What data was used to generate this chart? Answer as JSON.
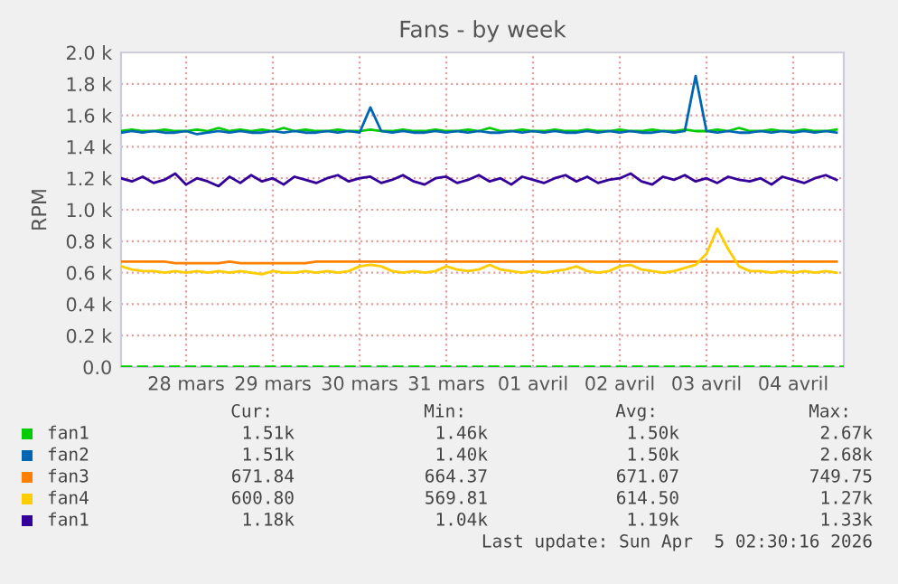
{
  "chart_data": {
    "type": "line",
    "title": "Fans - by week",
    "ylabel": "RPM",
    "x": [
      "2026-03-27T18:00",
      "2026-03-27T21:00",
      "2026-03-28T00:00",
      "2026-03-28T03:00",
      "2026-03-28T06:00",
      "2026-03-28T09:00",
      "2026-03-28T12:00",
      "2026-03-28T15:00",
      "2026-03-28T18:00",
      "2026-03-28T21:00",
      "2026-03-29T00:00",
      "2026-03-29T03:00",
      "2026-03-29T06:00",
      "2026-03-29T09:00",
      "2026-03-29T12:00",
      "2026-03-29T15:00",
      "2026-03-29T18:00",
      "2026-03-29T21:00",
      "2026-03-30T00:00",
      "2026-03-30T03:00",
      "2026-03-30T06:00",
      "2026-03-30T09:00",
      "2026-03-30T12:00",
      "2026-03-30T15:00",
      "2026-03-30T18:00",
      "2026-03-30T21:00",
      "2026-03-31T00:00",
      "2026-03-31T03:00",
      "2026-03-31T06:00",
      "2026-03-31T09:00",
      "2026-03-31T12:00",
      "2026-03-31T15:00",
      "2026-03-31T18:00",
      "2026-03-31T21:00",
      "2026-04-01T00:00",
      "2026-04-01T03:00",
      "2026-04-01T06:00",
      "2026-04-01T09:00",
      "2026-04-01T12:00",
      "2026-04-01T15:00",
      "2026-04-01T18:00",
      "2026-04-01T21:00",
      "2026-04-02T00:00",
      "2026-04-02T03:00",
      "2026-04-02T06:00",
      "2026-04-02T09:00",
      "2026-04-02T12:00",
      "2026-04-02T15:00",
      "2026-04-02T18:00",
      "2026-04-02T21:00",
      "2026-04-03T00:00",
      "2026-04-03T03:00",
      "2026-04-03T06:00",
      "2026-04-03T09:00",
      "2026-04-03T12:00",
      "2026-04-03T15:00",
      "2026-04-03T18:00",
      "2026-04-03T21:00",
      "2026-04-04T00:00",
      "2026-04-04T03:00",
      "2026-04-04T06:00",
      "2026-04-04T09:00",
      "2026-04-04T12:00",
      "2026-04-04T15:00",
      "2026-04-04T18:00",
      "2026-04-04T21:00",
      "2026-04-05T00:00"
    ],
    "series": [
      {
        "name": "fan1",
        "color": "#00cc00",
        "values": [
          1500,
          1510,
          1500,
          1500,
          1510,
          1500,
          1500,
          1510,
          1500,
          1520,
          1500,
          1510,
          1500,
          1510,
          1500,
          1520,
          1500,
          1510,
          1500,
          1500,
          1510,
          1500,
          1500,
          1510,
          1500,
          1500,
          1510,
          1500,
          1500,
          1510,
          1500,
          1500,
          1510,
          1500,
          1520,
          1500,
          1500,
          1510,
          1500,
          1500,
          1510,
          1500,
          1500,
          1510,
          1500,
          1500,
          1510,
          1500,
          1500,
          1510,
          1500,
          1500,
          1510,
          1500,
          1500,
          1510,
          1500,
          1520,
          1500,
          1500,
          1510,
          1500,
          1500,
          1510,
          1500,
          1500,
          1510
        ]
      },
      {
        "name": "fan2",
        "color": "#0066b3",
        "values": [
          1490,
          1500,
          1490,
          1500,
          1490,
          1490,
          1500,
          1480,
          1490,
          1500,
          1490,
          1500,
          1490,
          1490,
          1500,
          1490,
          1500,
          1490,
          1490,
          1500,
          1490,
          1500,
          1490,
          1650,
          1500,
          1490,
          1500,
          1490,
          1490,
          1500,
          1490,
          1500,
          1490,
          1500,
          1490,
          1490,
          1500,
          1490,
          1500,
          1490,
          1500,
          1490,
          1490,
          1500,
          1490,
          1500,
          1490,
          1500,
          1490,
          1490,
          1500,
          1490,
          1500,
          1850,
          1500,
          1490,
          1500,
          1490,
          1490,
          1500,
          1490,
          1500,
          1490,
          1500,
          1490,
          1500,
          1490
        ]
      },
      {
        "name": "fan3",
        "color": "#ff8000",
        "values": [
          670,
          670,
          670,
          670,
          670,
          660,
          660,
          660,
          660,
          660,
          670,
          660,
          660,
          660,
          660,
          660,
          660,
          660,
          670,
          670,
          670,
          670,
          670,
          670,
          670,
          670,
          670,
          670,
          670,
          670,
          670,
          670,
          670,
          670,
          670,
          670,
          670,
          670,
          670,
          670,
          670,
          670,
          670,
          670,
          670,
          670,
          670,
          670,
          670,
          670,
          670,
          670,
          670,
          670,
          670,
          670,
          670,
          670,
          670,
          670,
          670,
          670,
          670,
          670,
          670,
          670,
          670
        ]
      },
      {
        "name": "fan4",
        "color": "#ffcc00",
        "values": [
          640,
          620,
          610,
          610,
          600,
          610,
          600,
          610,
          600,
          610,
          600,
          610,
          600,
          590,
          610,
          600,
          600,
          610,
          600,
          610,
          600,
          610,
          640,
          650,
          640,
          610,
          600,
          610,
          600,
          610,
          640,
          620,
          610,
          620,
          650,
          620,
          610,
          600,
          610,
          600,
          610,
          620,
          640,
          610,
          600,
          610,
          640,
          650,
          620,
          610,
          600,
          610,
          630,
          650,
          720,
          880,
          750,
          640,
          610,
          610,
          600,
          610,
          600,
          610,
          600,
          610,
          600
        ]
      },
      {
        "name": "fan1",
        "color": "#330099",
        "values": [
          1200,
          1180,
          1210,
          1170,
          1190,
          1230,
          1160,
          1200,
          1180,
          1150,
          1210,
          1170,
          1220,
          1180,
          1200,
          1160,
          1210,
          1190,
          1170,
          1200,
          1220,
          1180,
          1200,
          1210,
          1170,
          1190,
          1220,
          1180,
          1160,
          1200,
          1210,
          1170,
          1190,
          1220,
          1180,
          1200,
          1160,
          1210,
          1190,
          1170,
          1200,
          1220,
          1180,
          1210,
          1170,
          1190,
          1200,
          1230,
          1180,
          1160,
          1210,
          1190,
          1220,
          1180,
          1200,
          1170,
          1210,
          1190,
          1180,
          1200,
          1160,
          1210,
          1190,
          1170,
          1200,
          1220,
          1190
        ]
      }
    ],
    "xlim": [
      "2026-03-27T18:00",
      "2026-04-05T02:00"
    ],
    "xticks": [
      {
        "value": "2026-03-28T12:00",
        "label": "28 mars"
      },
      {
        "value": "2026-03-29T12:00",
        "label": "29 mars"
      },
      {
        "value": "2026-03-30T12:00",
        "label": "30 mars"
      },
      {
        "value": "2026-03-31T12:00",
        "label": "31 mars"
      },
      {
        "value": "2026-04-01T12:00",
        "label": "01 avril"
      },
      {
        "value": "2026-04-02T12:00",
        "label": "02 avril"
      },
      {
        "value": "2026-04-03T12:00",
        "label": "03 avril"
      },
      {
        "value": "2026-04-04T12:00",
        "label": "04 avril"
      }
    ],
    "ylim": [
      0,
      2000
    ],
    "yticks": [
      {
        "value": 0,
        "label": "0.0"
      },
      {
        "value": 200,
        "label": "0.2 k"
      },
      {
        "value": 400,
        "label": "0.4 k"
      },
      {
        "value": 600,
        "label": "0.6 k"
      },
      {
        "value": 800,
        "label": "0.8 k"
      },
      {
        "value": 1000,
        "label": "1.0 k"
      },
      {
        "value": 1200,
        "label": "1.2 k"
      },
      {
        "value": 1400,
        "label": "1.4 k"
      },
      {
        "value": 1600,
        "label": "1.6 k"
      },
      {
        "value": 1800,
        "label": "1.8 k"
      },
      {
        "value": 2000,
        "label": "2.0 k"
      }
    ],
    "ref_lines": [
      {
        "axis": "y",
        "value": 0,
        "color": "#00cc00",
        "line_style": "dashed"
      }
    ],
    "grid": true,
    "legend": "bottom",
    "line_style": "solid",
    "marker": "none",
    "annotations": [
      "Cur:",
      "Min:",
      "Avg:",
      "Max:",
      "1.51k",
      "1.46k",
      "1.50k",
      "2.67k",
      "1.51k",
      "1.40k",
      "1.50k",
      "2.68k",
      "671.84",
      "664.37",
      "671.07",
      "749.75",
      "600.80",
      "569.81",
      "614.50",
      "1.27k",
      "1.18k",
      "1.04k",
      "1.19k",
      "1.33k",
      "Last update: Sun Apr  5 02:30:16 2026"
    ]
  }
}
